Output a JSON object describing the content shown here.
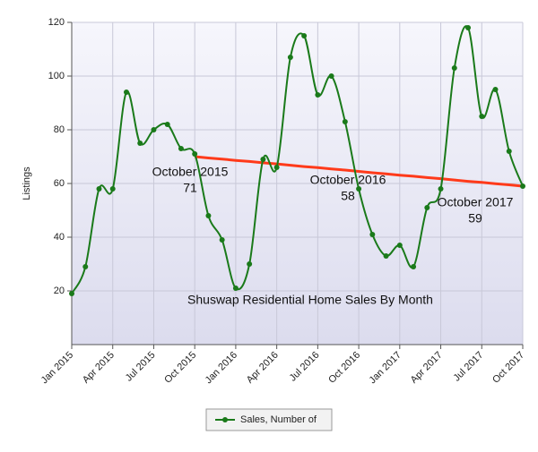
{
  "chart_data": {
    "type": "line",
    "y_label": "Listings",
    "categories": [
      "Jan 2015",
      null,
      null,
      "Apr 2015",
      null,
      null,
      "Jul 2015",
      null,
      null,
      "Oct 2015",
      null,
      null,
      "Jan 2016",
      null,
      null,
      "Apr 2016",
      null,
      null,
      "Jul 2016",
      null,
      null,
      "Oct 2016",
      null,
      null,
      "Jan 2017",
      null,
      null,
      "Apr 2017",
      null,
      null,
      "Jul 2017",
      null,
      null,
      "Oct 2017"
    ],
    "series": [
      {
        "name": "Sales, Number of",
        "color": "#1a7a1a",
        "values": [
          19,
          29,
          58,
          58,
          94,
          75,
          80,
          82,
          73,
          71,
          48,
          39,
          21,
          30,
          69,
          66,
          107,
          115,
          93,
          100,
          83,
          58,
          41,
          33,
          37,
          29,
          51,
          58,
          103,
          118,
          85,
          95,
          72,
          59
        ]
      }
    ],
    "trendline": {
      "color": "#ff3a1a",
      "values": [
        null,
        null,
        null,
        null,
        null,
        null,
        null,
        null,
        null,
        70,
        69.5,
        69.1,
        68.6,
        68.2,
        67.7,
        67.3,
        66.8,
        66.3,
        65.9,
        65.4,
        65,
        64.5,
        64,
        63.6,
        63.1,
        62.7,
        62.2,
        61.8,
        61.3,
        60.8,
        60.4,
        59.9,
        59.5,
        59
      ]
    },
    "ylim": [
      0,
      120
    ],
    "yticks": [
      20,
      40,
      60,
      80,
      100,
      120
    ],
    "grid": true,
    "annotations": [
      {
        "text": "October 2015",
        "value": 71
      },
      {
        "text": "October 2016",
        "value": 58
      },
      {
        "text": "October 2017",
        "value": 59
      },
      {
        "text": "Shuswap Residential Home Sales By Month"
      }
    ]
  }
}
